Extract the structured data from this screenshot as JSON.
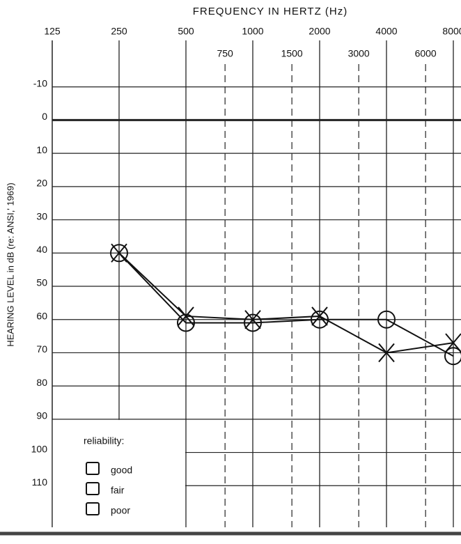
{
  "chart_data": {
    "type": "line",
    "title": "FREQUENCY IN HERTZ (Hz)",
    "y_label": "HEARING LEVEL in dB (re: ANSI,' 1969)",
    "x": [
      250,
      500,
      1000,
      2000,
      4000,
      8000
    ],
    "series": [
      {
        "marker": "circle",
        "color": "#111111",
        "values": [
          40,
          61,
          61,
          60,
          60,
          71
        ]
      },
      {
        "marker": "cross",
        "color": "#111111",
        "values": [
          40,
          59,
          60,
          59,
          70,
          67
        ]
      }
    ],
    "xlim": [
      125,
      8000
    ],
    "log_x": true,
    "xticks": [
      125,
      250,
      500,
      1000,
      2000,
      4000,
      8000
    ],
    "xticks_minor": [
      750,
      1500,
      3000,
      6000
    ],
    "ylim": [
      -20,
      120
    ],
    "yticks": [
      -10,
      0,
      10,
      20,
      30,
      40,
      50,
      60,
      70,
      80,
      90,
      100,
      110
    ],
    "grid": true,
    "reliability": {
      "title": "reliability:",
      "options": [
        "good",
        "fair",
        "poor"
      ]
    }
  }
}
